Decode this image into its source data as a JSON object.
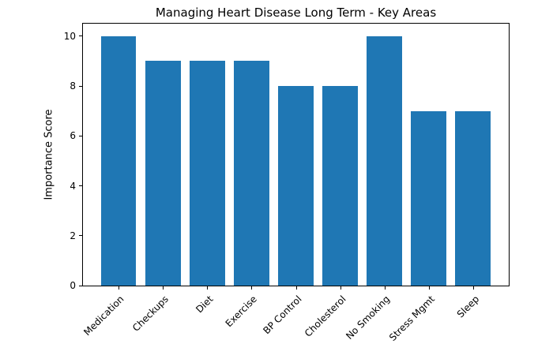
{
  "chart_data": {
    "type": "bar",
    "title": "Managing Heart Disease Long Term - Key Areas",
    "categories": [
      "Medication",
      "Checkups",
      "Diet",
      "Exercise",
      "BP Control",
      "Cholesterol",
      "No Smoking",
      "Stress Mgmt",
      "Sleep"
    ],
    "values": [
      10,
      9,
      9,
      9,
      8,
      8,
      10,
      7,
      7
    ],
    "xlabel": "",
    "ylabel": "Importance Score",
    "ylim": [
      0,
      10.5
    ],
    "yticks": [
      0,
      2,
      4,
      6,
      8,
      10
    ],
    "bar_color": "#1f77b4",
    "background_color": "#ffffff",
    "spine_color": "#000000",
    "grid": false,
    "legend_position": "none"
  }
}
